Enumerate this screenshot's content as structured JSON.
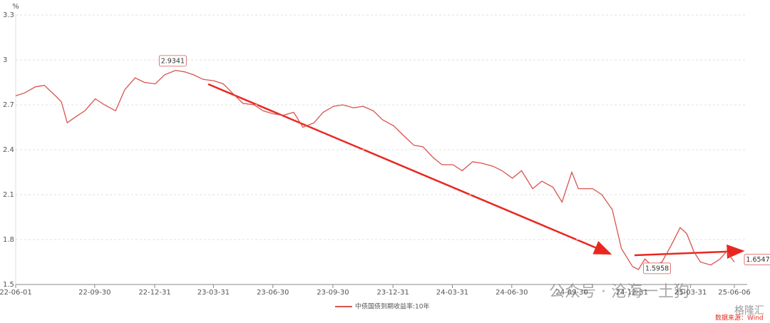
{
  "chart_data": {
    "type": "line",
    "y_unit": "%",
    "xlim": [
      "22-06-01",
      "25-06-06"
    ],
    "xticks": [
      "22-06-01",
      "22-09-30",
      "22-12-31",
      "23-03-31",
      "23-06-30",
      "23-09-30",
      "23-12-31",
      "24-03-31",
      "24-06-30",
      "24-09-30",
      "24-12-31",
      "25-03-31",
      "25-06-06"
    ],
    "ylim": [
      1.5,
      3.3
    ],
    "yticks": [
      1.5,
      1.8,
      2.1,
      2.4,
      2.7,
      3,
      3.3
    ],
    "grid": true,
    "x": [
      "22-06-01",
      "22-06-15",
      "22-07-01",
      "22-07-15",
      "22-08-01",
      "22-08-10",
      "22-08-19",
      "22-09-01",
      "22-09-15",
      "22-10-01",
      "22-10-15",
      "22-11-01",
      "22-11-15",
      "22-12-01",
      "22-12-15",
      "23-01-01",
      "23-01-15",
      "23-02-01",
      "23-02-15",
      "23-03-01",
      "23-03-15",
      "23-04-01",
      "23-04-15",
      "23-05-01",
      "23-05-15",
      "23-06-01",
      "23-06-15",
      "23-07-01",
      "23-07-15",
      "23-08-01",
      "23-08-15",
      "23-09-01",
      "23-09-15",
      "23-10-01",
      "23-10-15",
      "23-11-01",
      "23-11-15",
      "23-12-01",
      "23-12-15",
      "24-01-01",
      "24-01-15",
      "24-02-01",
      "24-02-15",
      "24-03-01",
      "24-03-15",
      "24-04-01",
      "24-04-15",
      "24-05-01",
      "24-05-15",
      "24-06-01",
      "24-06-15",
      "24-07-01",
      "24-07-15",
      "24-08-01",
      "24-08-15",
      "24-09-01",
      "24-09-15",
      "24-09-30",
      "24-10-10",
      "24-10-20",
      "24-11-01",
      "24-11-15",
      "24-12-01",
      "24-12-15",
      "25-01-01",
      "25-01-10",
      "25-01-20",
      "25-02-01",
      "25-02-15",
      "25-03-01",
      "25-03-15",
      "25-03-25",
      "25-04-05",
      "25-04-15",
      "25-05-01",
      "25-05-15",
      "25-05-25",
      "25-06-06"
    ],
    "series": [
      {
        "name": "中债国债到期收益率:10年",
        "color": "#d9534f",
        "values": [
          2.76,
          2.78,
          2.82,
          2.83,
          2.76,
          2.72,
          2.58,
          2.62,
          2.66,
          2.74,
          2.7,
          2.66,
          2.8,
          2.88,
          2.85,
          2.84,
          2.9,
          2.93,
          2.92,
          2.9,
          2.87,
          2.86,
          2.84,
          2.77,
          2.71,
          2.7,
          2.66,
          2.64,
          2.63,
          2.65,
          2.55,
          2.58,
          2.65,
          2.69,
          2.7,
          2.68,
          2.69,
          2.66,
          2.6,
          2.56,
          2.5,
          2.43,
          2.42,
          2.35,
          2.3,
          2.3,
          2.26,
          2.32,
          2.31,
          2.29,
          2.26,
          2.21,
          2.26,
          2.14,
          2.19,
          2.15,
          2.05,
          2.25,
          2.14,
          2.14,
          2.14,
          2.1,
          2.0,
          1.74,
          1.62,
          1.6,
          1.67,
          1.62,
          1.65,
          1.76,
          1.88,
          1.84,
          1.72,
          1.65,
          1.63,
          1.67,
          1.72,
          1.65
        ]
      }
    ],
    "annotations": [
      {
        "x": "23-01-20",
        "value": 2.9341
      },
      {
        "x": "25-01-20",
        "value": 1.5958
      },
      {
        "x": "25-06-06",
        "value": 1.6547
      }
    ],
    "watermark": "公众号 · 沧海一土狗",
    "logo": "格隆汇",
    "source": "数据来源：Wind"
  }
}
